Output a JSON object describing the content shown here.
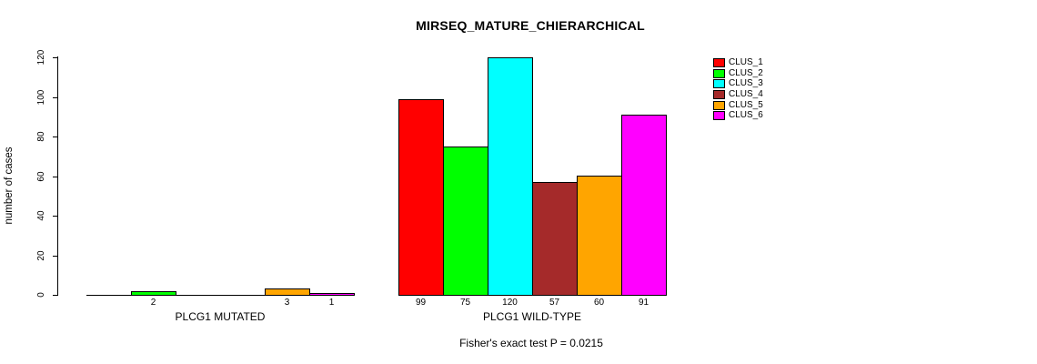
{
  "chart_data": {
    "type": "bar",
    "title": "MIRSEQ_MATURE_CHIERARCHICAL",
    "ylabel": "number of cases",
    "xlabel": "",
    "ylim": [
      0,
      120
    ],
    "y_ticks": [
      0,
      20,
      40,
      60,
      80,
      100,
      120
    ],
    "grid": false,
    "legend_position": "right",
    "categories": [
      "PLCG1 MUTATED",
      "PLCG1 WILD-TYPE"
    ],
    "series": [
      {
        "name": "CLUS_1",
        "color": "#ff0000",
        "values": [
          0,
          99
        ]
      },
      {
        "name": "CLUS_2",
        "color": "#00ff00",
        "values": [
          2,
          75
        ]
      },
      {
        "name": "CLUS_3",
        "color": "#00ffff",
        "values": [
          0,
          120
        ]
      },
      {
        "name": "CLUS_4",
        "color": "#a52a2a",
        "values": [
          0,
          57
        ]
      },
      {
        "name": "CLUS_5",
        "color": "#ffa500",
        "values": [
          3,
          60
        ]
      },
      {
        "name": "CLUS_6",
        "color": "#ff00ff",
        "values": [
          1,
          91
        ]
      }
    ],
    "bar_value_labels_shown": "nonzero values only",
    "annotation": "Fisher's exact test P = 0.0215"
  }
}
